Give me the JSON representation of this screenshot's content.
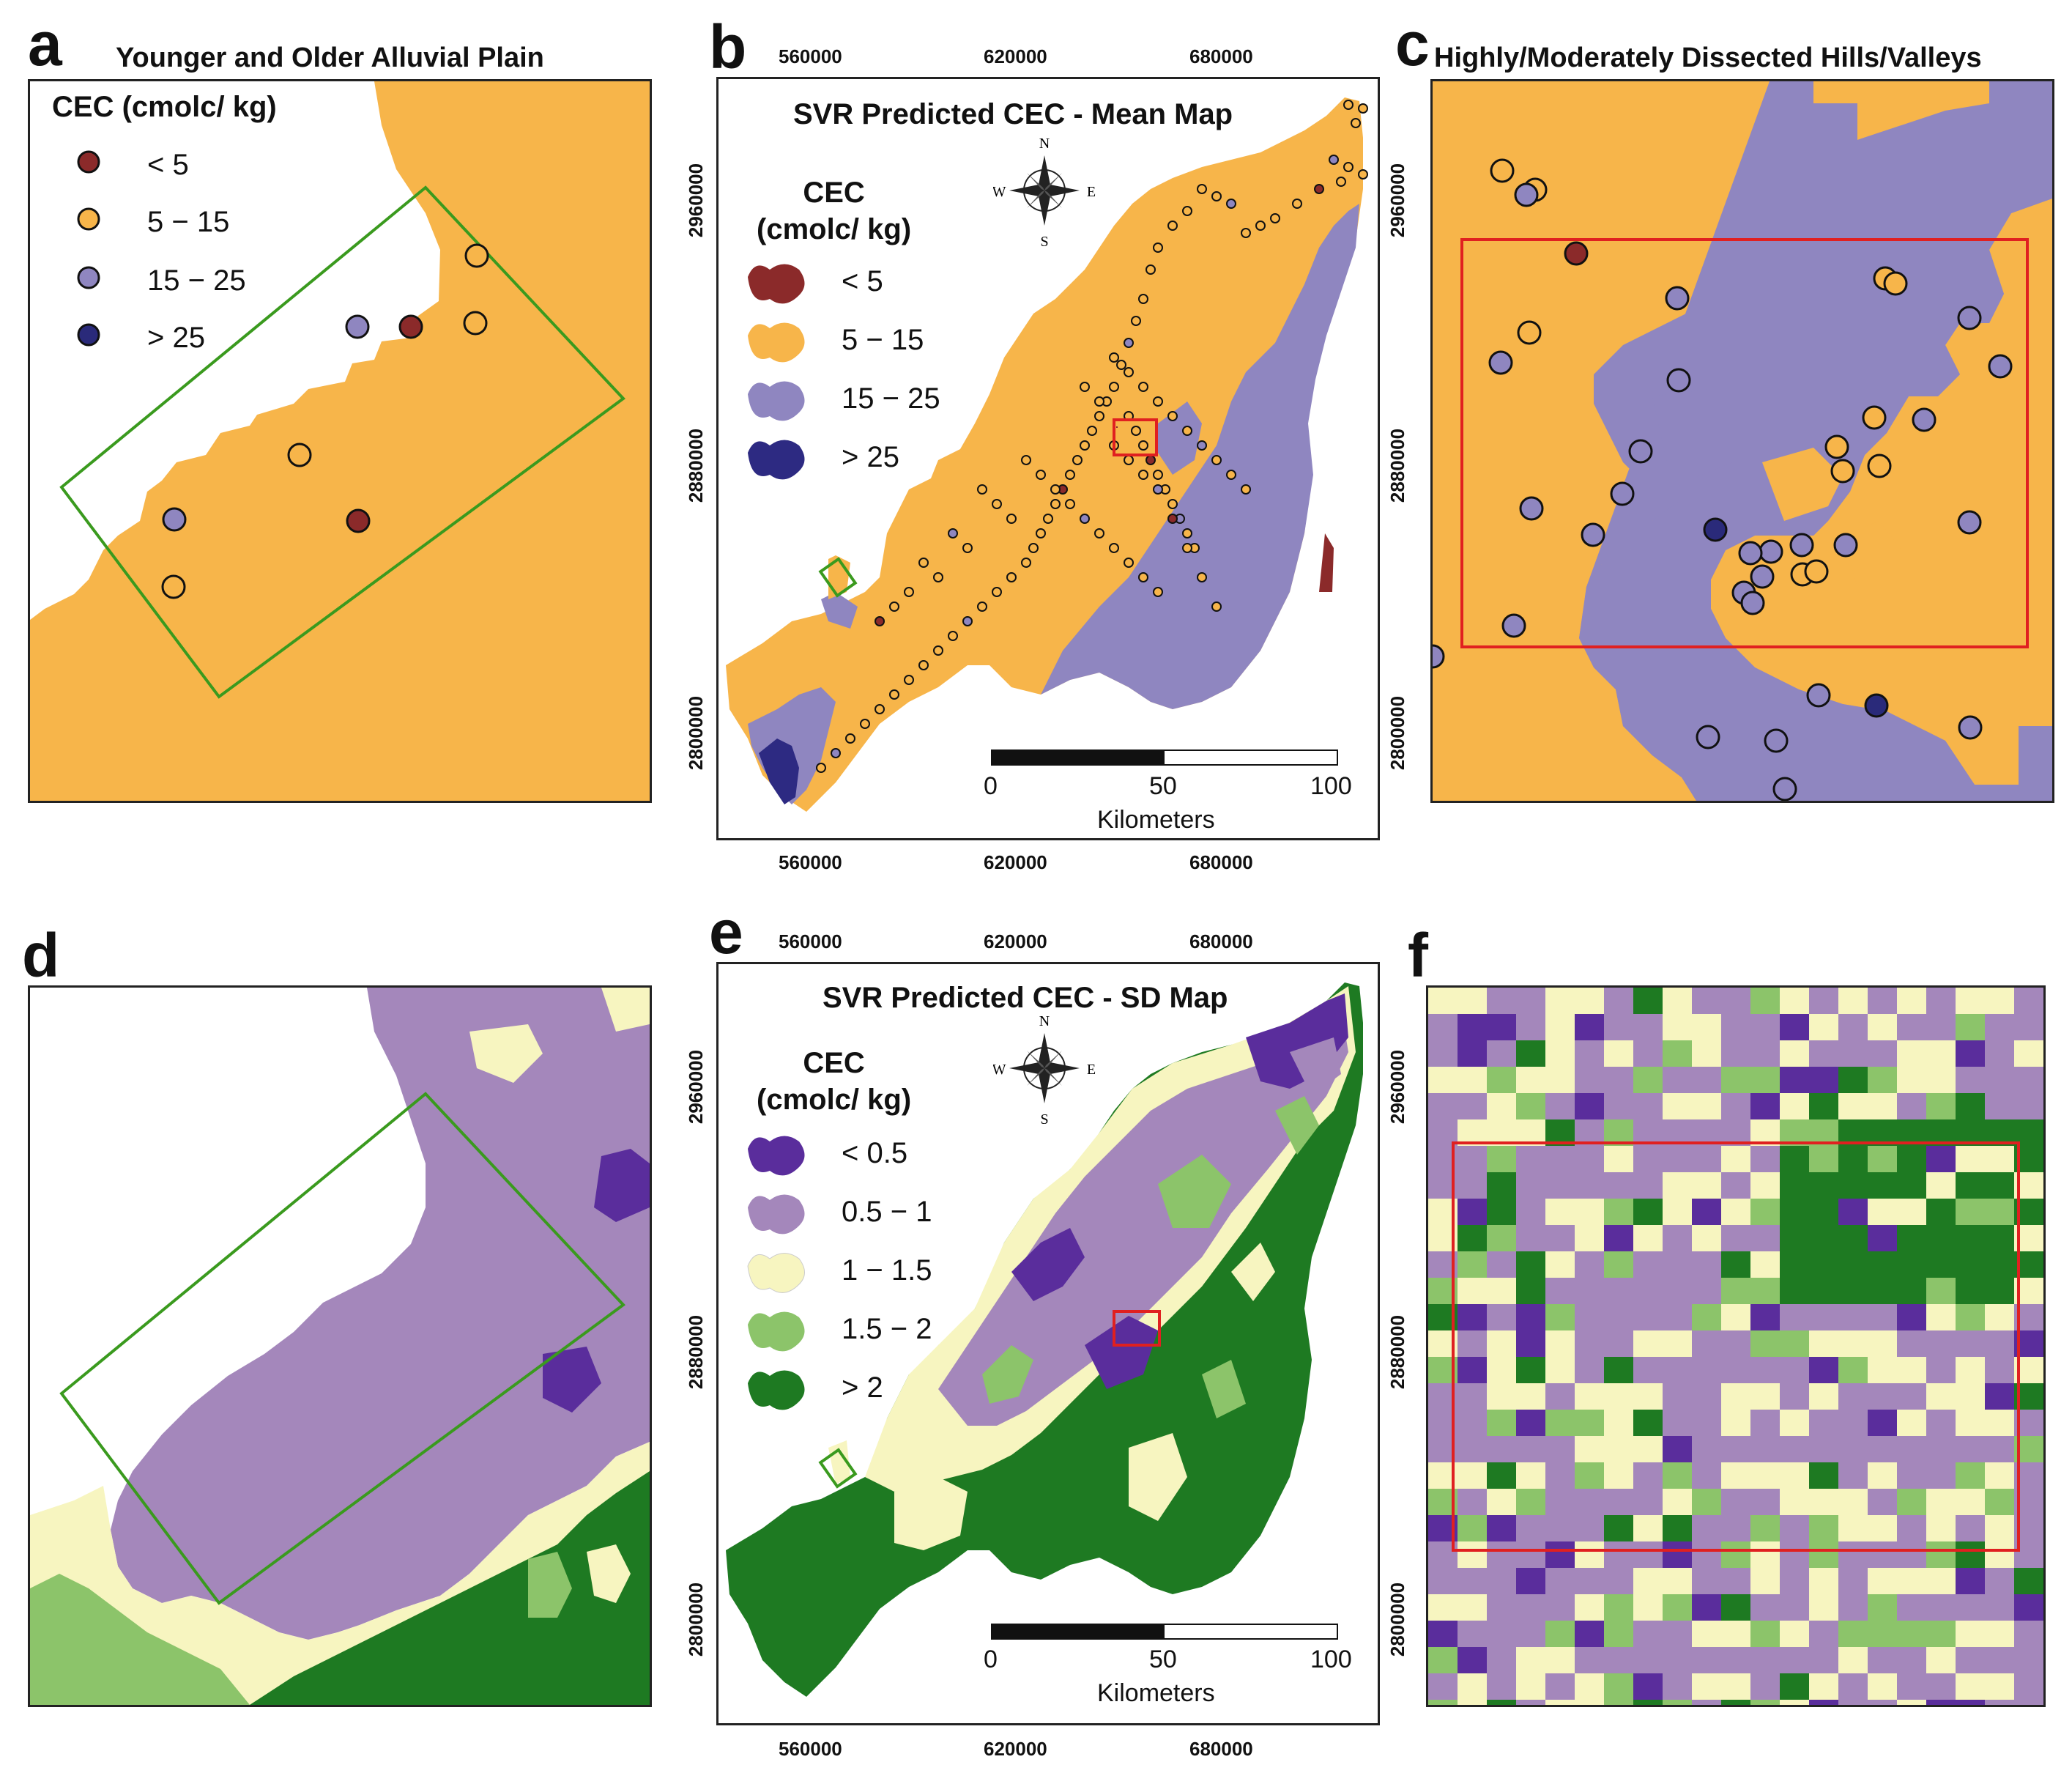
{
  "panel_a": {
    "letter": "a",
    "title": "Younger and Older Alluvial Plain",
    "legend_title": "CEC  (cmolc/ kg)",
    "legend_items": [
      {
        "label": "< 5",
        "color": "#8b2a2a"
      },
      {
        "label": "5 − 15",
        "color": "#f7b54a"
      },
      {
        "label": "15 − 25",
        "color": "#8f86c0"
      },
      {
        "label": "> 25",
        "color": "#2a2a7a"
      }
    ]
  },
  "panel_b": {
    "letter": "b",
    "title": "SVR Predicted CEC - Mean Map",
    "legend_title_1": "CEC",
    "legend_title_2": "(cmolc/ kg)",
    "legend_items": [
      {
        "label": "< 5",
        "color": "#8b2a2a"
      },
      {
        "label": "5 − 15",
        "color": "#f7b54a"
      },
      {
        "label": "15 − 25",
        "color": "#8f86c0"
      },
      {
        "label": "> 25",
        "color": "#2d2a82"
      }
    ],
    "x_ticks": [
      "560000",
      "620000",
      "680000"
    ],
    "y_ticks": [
      "2960000",
      "2880000",
      "2800000"
    ],
    "scale_labels": [
      "0",
      "50",
      "100"
    ],
    "scale_unit": "Kilometers",
    "compass": {
      "n": "N",
      "s": "S",
      "e": "E",
      "w": "W"
    }
  },
  "panel_c": {
    "letter": "c",
    "title": "Highly/Moderately Dissected Hills/Valleys",
    "y_ticks": [
      "2960000",
      "2880000",
      "2800000"
    ]
  },
  "panel_d": {
    "letter": "d"
  },
  "panel_e": {
    "letter": "e",
    "title": "SVR Predicted CEC - SD Map",
    "legend_title_1": "CEC",
    "legend_title_2": "(cmolc/ kg)",
    "legend_items": [
      {
        "label": "< 0.5",
        "color": "#5a2d9c"
      },
      {
        "label": "0.5 − 1",
        "color": "#a487bb"
      },
      {
        "label": "1 − 1.5",
        "color": "#f7f5c0"
      },
      {
        "label": "1.5 − 2",
        "color": "#8cc46a"
      },
      {
        "label": "> 2",
        "color": "#1e7a22"
      }
    ],
    "x_ticks": [
      "560000",
      "620000",
      "680000"
    ],
    "y_ticks": [
      "2960000",
      "2880000",
      "2800000"
    ],
    "scale_labels": [
      "0",
      "50",
      "100"
    ],
    "scale_unit": "Kilometers",
    "compass": {
      "n": "N",
      "s": "S",
      "e": "E",
      "w": "W"
    }
  },
  "panel_f": {
    "letter": "f",
    "y_ticks": [
      "2960000",
      "2880000",
      "2800000"
    ]
  },
  "colors": {
    "orange": "#f7b54a",
    "lavender": "#8f86c0",
    "maroon": "#8b2a2a",
    "navy": "#2a2a7a",
    "sd_purple_dark": "#5a2d9c",
    "sd_purple_light": "#a487bb",
    "sd_cream": "#f7f5c0",
    "sd_green_light": "#8cc46a",
    "sd_green_dark": "#1e7a22",
    "box_green": "#3a9a1e",
    "box_red": "#e02020"
  }
}
